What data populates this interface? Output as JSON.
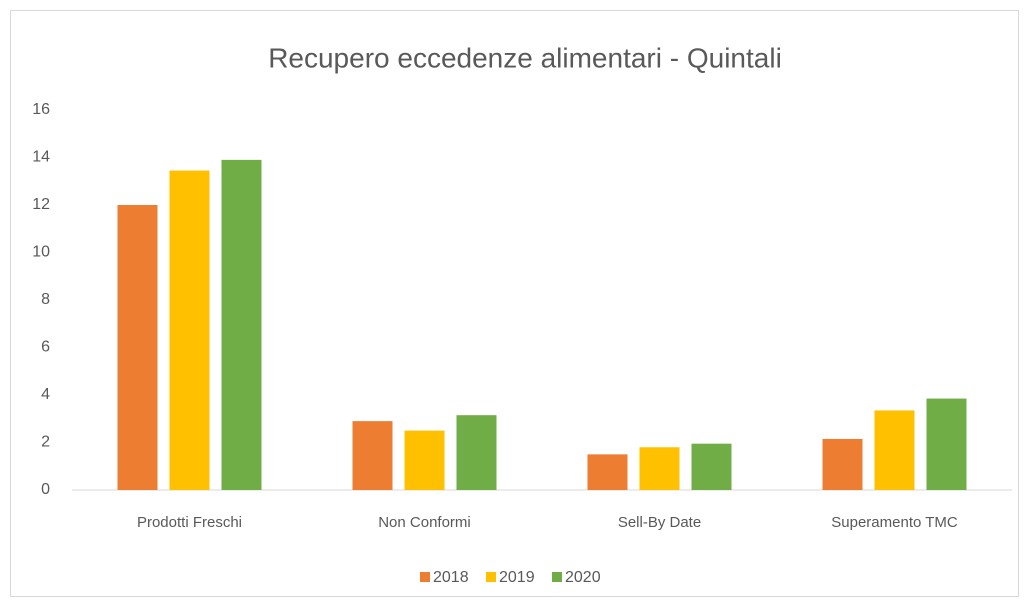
{
  "chart_data": {
    "type": "bar",
    "title": "Recupero eccedenze alimentari - Quintali",
    "categories": [
      "Prodotti Freschi",
      "Non Conformi",
      "Sell-By Date",
      "Superamento TMC"
    ],
    "series": [
      {
        "name": "2018",
        "color": "#ed7d31",
        "values": [
          12.0,
          2.9,
          1.5,
          2.15
        ]
      },
      {
        "name": "2019",
        "color": "#ffc000",
        "values": [
          13.45,
          2.5,
          1.8,
          3.35
        ]
      },
      {
        "name": "2020",
        "color": "#70ad47",
        "values": [
          13.9,
          3.15,
          1.95,
          3.85
        ]
      }
    ],
    "ylim": [
      0,
      16
    ],
    "yticks": [
      0,
      2,
      4,
      6,
      8,
      10,
      12,
      14,
      16
    ],
    "grid": false,
    "legend": "bottom"
  }
}
